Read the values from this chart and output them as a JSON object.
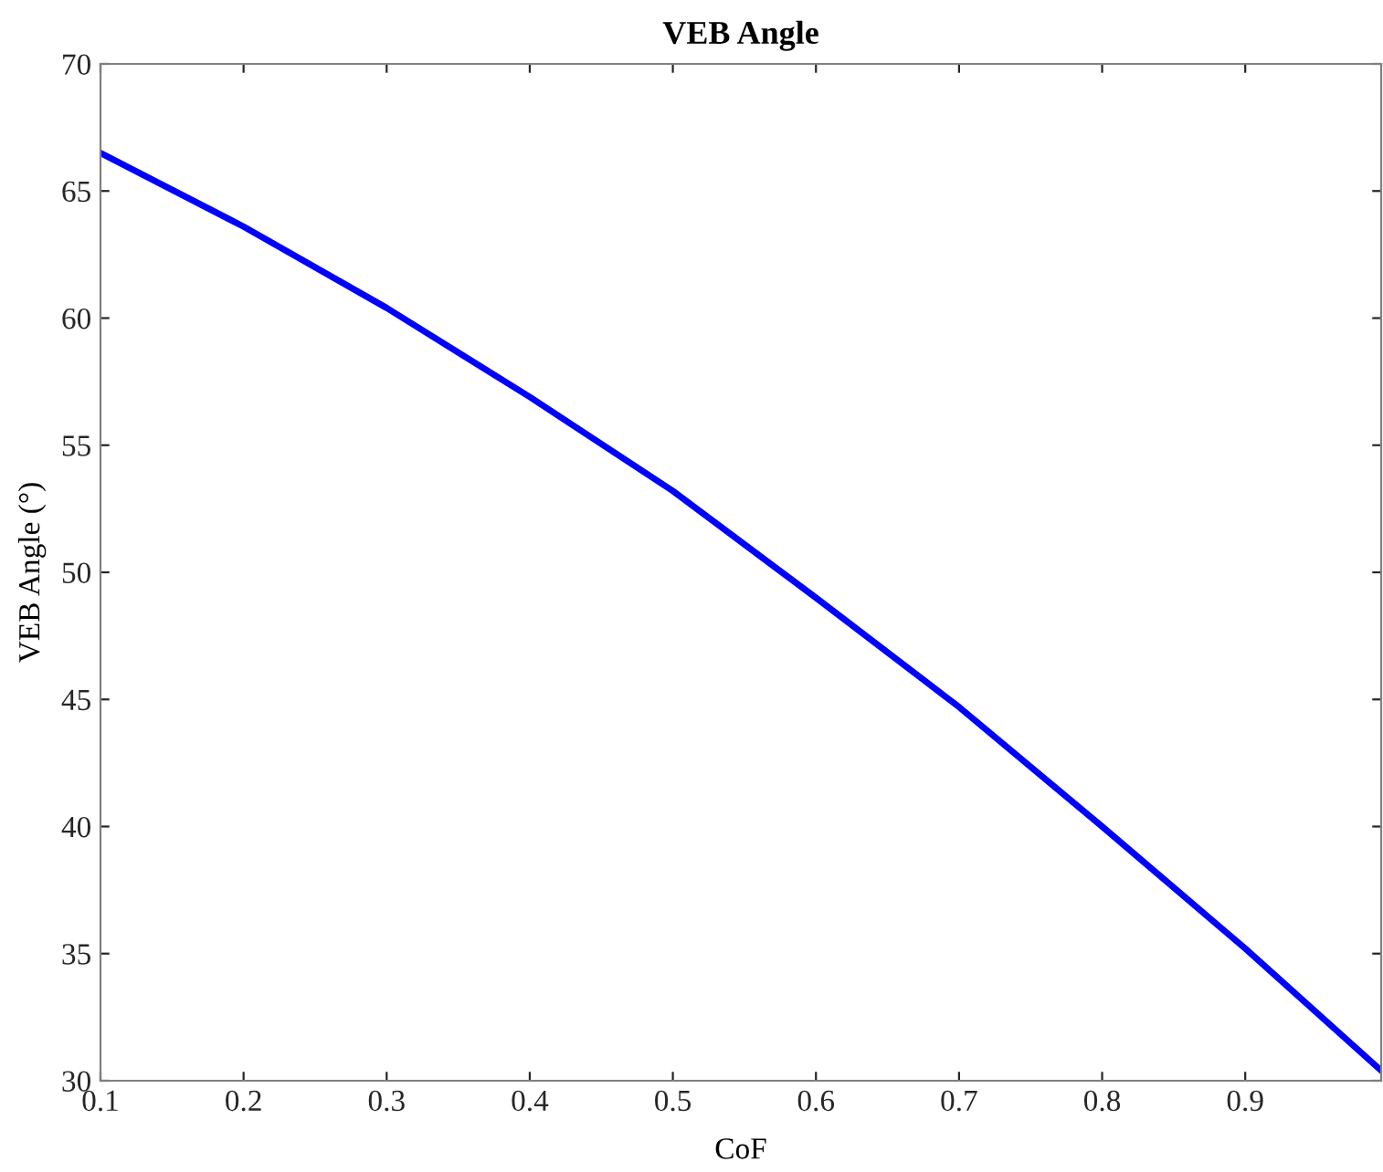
{
  "chart_data": {
    "type": "line",
    "title": "VEB Angle",
    "xlabel": "CoF",
    "ylabel": "VEB Angle (°)",
    "x": [
      0.1,
      0.2,
      0.3,
      0.4,
      0.5,
      0.6,
      0.7,
      0.8,
      0.9,
      0.995
    ],
    "series": [
      {
        "color": "#0000ff",
        "values": [
          66.5,
          63.6,
          60.4,
          56.9,
          53.2,
          49.0,
          44.7,
          40.0,
          35.2,
          30.4
        ]
      }
    ],
    "xlim": [
      0.1,
      0.995
    ],
    "xticks": [
      0.1,
      0.2,
      0.3,
      0.4,
      0.5,
      0.6,
      0.7,
      0.8,
      0.9
    ],
    "ylim": [
      30,
      70
    ],
    "yticks": [
      30,
      35,
      40,
      45,
      50,
      55,
      60,
      65,
      70
    ],
    "grid": false,
    "legend": false,
    "line_style": "solid",
    "marker": "none"
  }
}
